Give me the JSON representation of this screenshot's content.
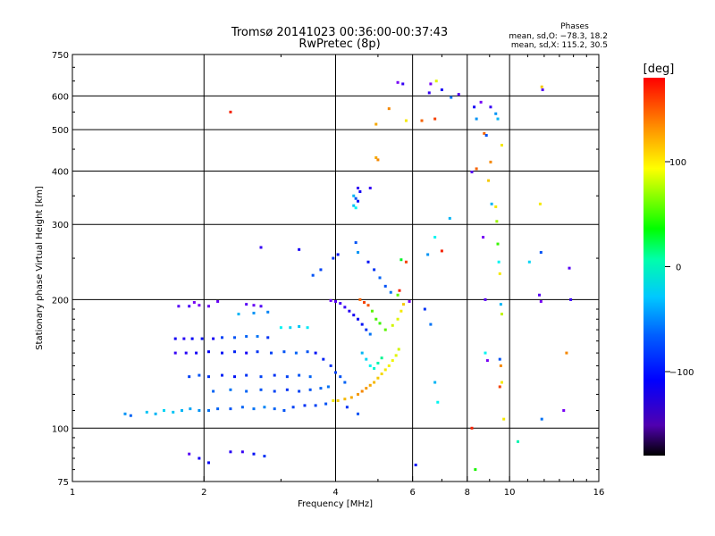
{
  "chart_data": {
    "type": "scatter",
    "title": "Tromsø 20141023 00:36:00-00:37:43",
    "subtitle": "RwPretec (8p)",
    "xlabel": "Frequency [MHz]",
    "ylabel": "Stationary phase Virtual Height [km]",
    "x_scale": "log",
    "y_scale": "log",
    "xlim": [
      1,
      16
    ],
    "ylim": [
      75,
      750
    ],
    "x_ticks": [
      1,
      2,
      4,
      6,
      8,
      10,
      16
    ],
    "y_ticks": [
      75,
      100,
      200,
      300,
      400,
      500,
      600,
      750
    ],
    "grid": true,
    "phases_stats": {
      "heading": "Phases",
      "o_line": "mean, sd,O: −78.3, 18.2",
      "x_line": "mean, sd,X: 115.2, 30.5"
    },
    "colorbar": {
      "unit": "[deg]",
      "range": [
        -180,
        180
      ],
      "ticks": [
        100,
        0,
        -100
      ]
    },
    "points": [
      [
        1.32,
        108,
        -70
      ],
      [
        1.36,
        107,
        -85
      ],
      [
        1.48,
        109,
        -55
      ],
      [
        1.55,
        108,
        -60
      ],
      [
        1.62,
        110,
        -50
      ],
      [
        1.7,
        109,
        -55
      ],
      [
        1.78,
        110,
        -60
      ],
      [
        1.86,
        111,
        -65
      ],
      [
        1.95,
        110,
        -70
      ],
      [
        2.05,
        110,
        -80
      ],
      [
        2.15,
        111,
        -85
      ],
      [
        2.3,
        111,
        -90
      ],
      [
        2.45,
        112,
        -85
      ],
      [
        2.6,
        111,
        -80
      ],
      [
        2.75,
        112,
        -75
      ],
      [
        2.9,
        111,
        -85
      ],
      [
        3.05,
        110,
        -90
      ],
      [
        3.2,
        112,
        -95
      ],
      [
        3.4,
        113,
        -100
      ],
      [
        3.6,
        113,
        -95
      ],
      [
        3.8,
        114,
        -90
      ],
      [
        3.95,
        116,
        110
      ],
      [
        4.05,
        116,
        120
      ],
      [
        4.2,
        117,
        125
      ],
      [
        4.35,
        118,
        130
      ],
      [
        4.5,
        120,
        135
      ],
      [
        4.6,
        122,
        140
      ],
      [
        4.7,
        124,
        135
      ],
      [
        4.8,
        126,
        130
      ],
      [
        4.9,
        128,
        125
      ],
      [
        5.0,
        131,
        120
      ],
      [
        5.1,
        134,
        115
      ],
      [
        5.2,
        137,
        110
      ],
      [
        5.3,
        140,
        108
      ],
      [
        5.4,
        144,
        105
      ],
      [
        5.5,
        148,
        100
      ],
      [
        5.58,
        153,
        95
      ],
      [
        1.72,
        162,
        -120
      ],
      [
        1.8,
        162,
        -125
      ],
      [
        1.88,
        162,
        -115
      ],
      [
        1.98,
        162,
        -110
      ],
      [
        2.1,
        162,
        -120
      ],
      [
        2.2,
        163,
        -95
      ],
      [
        2.35,
        163,
        -90
      ],
      [
        2.5,
        164,
        -85
      ],
      [
        2.65,
        164,
        -80
      ],
      [
        2.8,
        163,
        -100
      ],
      [
        3.0,
        172,
        -40
      ],
      [
        3.15,
        172,
        -50
      ],
      [
        3.3,
        173,
        -55
      ],
      [
        3.45,
        172,
        -45
      ],
      [
        1.72,
        150,
        -130
      ],
      [
        1.82,
        150,
        -125
      ],
      [
        1.92,
        150,
        -120
      ],
      [
        2.05,
        151,
        -115
      ],
      [
        2.2,
        150,
        -110
      ],
      [
        2.35,
        151,
        -105
      ],
      [
        2.5,
        150,
        -120
      ],
      [
        2.65,
        151,
        -100
      ],
      [
        2.85,
        150,
        -95
      ],
      [
        3.05,
        151,
        -90
      ],
      [
        3.25,
        150,
        -85
      ],
      [
        3.45,
        151,
        -90
      ],
      [
        1.85,
        132,
        -95
      ],
      [
        1.95,
        133,
        -90
      ],
      [
        2.05,
        132,
        -100
      ],
      [
        2.2,
        133,
        -105
      ],
      [
        2.35,
        132,
        -110
      ],
      [
        2.5,
        133,
        -100
      ],
      [
        2.7,
        132,
        -95
      ],
      [
        2.9,
        133,
        -100
      ],
      [
        3.1,
        132,
        -95
      ],
      [
        3.3,
        133,
        -90
      ],
      [
        3.5,
        132,
        -85
      ],
      [
        2.1,
        122,
        -85
      ],
      [
        2.3,
        123,
        -80
      ],
      [
        2.5,
        122,
        -85
      ],
      [
        2.7,
        123,
        -90
      ],
      [
        2.9,
        122,
        -95
      ],
      [
        3.1,
        123,
        -100
      ],
      [
        3.3,
        122,
        -95
      ],
      [
        3.5,
        123,
        -90
      ],
      [
        3.7,
        124,
        -85
      ],
      [
        3.85,
        125,
        -80
      ],
      [
        1.75,
        193,
        -140
      ],
      [
        1.85,
        193,
        -135
      ],
      [
        1.95,
        194,
        -150
      ],
      [
        2.05,
        193,
        -145
      ],
      [
        2.5,
        195,
        -140
      ],
      [
        2.6,
        194,
        -145
      ],
      [
        2.7,
        193,
        -138
      ],
      [
        3.9,
        199,
        -145
      ],
      [
        4.0,
        198,
        -140
      ],
      [
        4.1,
        196,
        -135
      ],
      [
        4.2,
        192,
        -130
      ],
      [
        4.3,
        188,
        -125
      ],
      [
        4.4,
        184,
        -120
      ],
      [
        4.5,
        180,
        -115
      ],
      [
        4.6,
        175,
        -110
      ],
      [
        4.7,
        170,
        -100
      ],
      [
        4.8,
        166,
        -80
      ],
      [
        4.55,
        200,
        150
      ],
      [
        4.65,
        197,
        160
      ],
      [
        4.75,
        194,
        155
      ],
      [
        4.85,
        188,
        60
      ],
      [
        4.95,
        180,
        55
      ],
      [
        5.05,
        176,
        50
      ],
      [
        5.2,
        170,
        60
      ],
      [
        5.4,
        174,
        95
      ],
      [
        5.55,
        180,
        100
      ],
      [
        5.65,
        188,
        110
      ],
      [
        5.72,
        195,
        120
      ],
      [
        4.6,
        150,
        -60
      ],
      [
        4.7,
        145,
        -50
      ],
      [
        4.8,
        140,
        -40
      ],
      [
        4.9,
        138,
        -30
      ],
      [
        5.0,
        142,
        -20
      ],
      [
        5.1,
        146,
        -10
      ],
      [
        3.6,
        150,
        -110
      ],
      [
        3.75,
        145,
        -105
      ],
      [
        3.9,
        140,
        -100
      ],
      [
        4.0,
        135,
        -95
      ],
      [
        4.1,
        132,
        -90
      ],
      [
        4.2,
        128,
        -85
      ],
      [
        1.9,
        197,
        -150
      ],
      [
        2.15,
        198,
        -145
      ],
      [
        2.4,
        185,
        -60
      ],
      [
        2.6,
        186,
        -70
      ],
      [
        2.8,
        187,
        -75
      ],
      [
        2.3,
        550,
        170
      ],
      [
        2.7,
        265,
        -130
      ],
      [
        3.3,
        262,
        -120
      ],
      [
        3.55,
        228,
        -90
      ],
      [
        3.7,
        235,
        -95
      ],
      [
        3.95,
        250,
        -100
      ],
      [
        4.05,
        255,
        -110
      ],
      [
        4.4,
        350,
        -60
      ],
      [
        4.45,
        345,
        -90
      ],
      [
        4.5,
        340,
        -110
      ],
      [
        4.4,
        332,
        -55
      ],
      [
        4.45,
        328,
        -40
      ],
      [
        4.5,
        365,
        -130
      ],
      [
        4.55,
        358,
        -120
      ],
      [
        4.8,
        365,
        -130
      ],
      [
        4.45,
        272,
        -90
      ],
      [
        4.5,
        258,
        -70
      ],
      [
        4.75,
        245,
        -110
      ],
      [
        4.9,
        235,
        -100
      ],
      [
        5.05,
        225,
        -85
      ],
      [
        5.2,
        215,
        -90
      ],
      [
        5.35,
        208,
        -80
      ],
      [
        5.55,
        205,
        60
      ],
      [
        5.6,
        210,
        170
      ],
      [
        5.65,
        248,
        20
      ],
      [
        5.8,
        245,
        160
      ],
      [
        5.9,
        198,
        -150
      ],
      [
        4.95,
        430,
        130
      ],
      [
        5.0,
        425,
        140
      ],
      [
        4.95,
        515,
        130
      ],
      [
        5.3,
        560,
        140
      ],
      [
        5.55,
        645,
        -150
      ],
      [
        5.7,
        640,
        -130
      ],
      [
        5.8,
        525,
        110
      ],
      [
        6.3,
        525,
        150
      ],
      [
        6.55,
        610,
        -130
      ],
      [
        6.6,
        640,
        -150
      ],
      [
        6.75,
        530,
        160
      ],
      [
        6.8,
        650,
        100
      ],
      [
        7.0,
        620,
        -120
      ],
      [
        7.35,
        595,
        -80
      ],
      [
        7.65,
        605,
        -140
      ],
      [
        8.3,
        565,
        -120
      ],
      [
        8.4,
        530,
        -70
      ],
      [
        8.6,
        580,
        -150
      ],
      [
        8.75,
        490,
        150
      ],
      [
        8.85,
        485,
        -90
      ],
      [
        9.05,
        565,
        -130
      ],
      [
        9.3,
        545,
        -70
      ],
      [
        9.4,
        530,
        -60
      ],
      [
        9.6,
        460,
        110
      ],
      [
        6.5,
        255,
        -70
      ],
      [
        6.75,
        280,
        -40
      ],
      [
        7.0,
        260,
        170
      ],
      [
        6.4,
        190,
        -100
      ],
      [
        6.6,
        175,
        -80
      ],
      [
        6.75,
        128,
        -60
      ],
      [
        6.85,
        115,
        -40
      ],
      [
        7.3,
        310,
        -60
      ],
      [
        8.2,
        398,
        -140
      ],
      [
        8.4,
        405,
        150
      ],
      [
        8.7,
        280,
        -150
      ],
      [
        8.8,
        200,
        -140
      ],
      [
        8.95,
        380,
        120
      ],
      [
        9.05,
        420,
        140
      ],
      [
        9.1,
        335,
        -60
      ],
      [
        9.3,
        330,
        110
      ],
      [
        9.35,
        305,
        80
      ],
      [
        9.4,
        270,
        50
      ],
      [
        9.45,
        245,
        -40
      ],
      [
        9.5,
        230,
        110
      ],
      [
        9.55,
        195,
        -60
      ],
      [
        9.6,
        185,
        90
      ],
      [
        9.5,
        145,
        -90
      ],
      [
        9.55,
        140,
        140
      ],
      [
        9.6,
        128,
        110
      ],
      [
        9.7,
        105,
        110
      ],
      [
        9.5,
        125,
        160
      ],
      [
        8.2,
        100,
        170
      ],
      [
        8.35,
        80,
        40
      ],
      [
        8.8,
        150,
        -40
      ],
      [
        8.9,
        144,
        -150
      ],
      [
        10.45,
        93,
        -20
      ],
      [
        11.1,
        245,
        -50
      ],
      [
        11.75,
        335,
        110
      ],
      [
        11.8,
        258,
        -90
      ],
      [
        11.7,
        205,
        -140
      ],
      [
        11.8,
        198,
        -150
      ],
      [
        11.85,
        630,
        120
      ],
      [
        11.9,
        620,
        -140
      ],
      [
        11.85,
        105,
        -80
      ],
      [
        13.3,
        110,
        -150
      ],
      [
        13.5,
        150,
        140
      ],
      [
        13.7,
        237,
        -140
      ],
      [
        13.8,
        200,
        -130
      ],
      [
        6.1,
        82,
        -110
      ],
      [
        1.85,
        87,
        -140
      ],
      [
        1.95,
        85,
        -120
      ],
      [
        2.05,
        83,
        -115
      ],
      [
        2.3,
        88,
        -125
      ],
      [
        2.45,
        88,
        -130
      ],
      [
        2.6,
        87,
        -110
      ],
      [
        2.75,
        86,
        -100
      ],
      [
        4.25,
        112,
        -100
      ],
      [
        4.5,
        108,
        -90
      ]
    ]
  }
}
